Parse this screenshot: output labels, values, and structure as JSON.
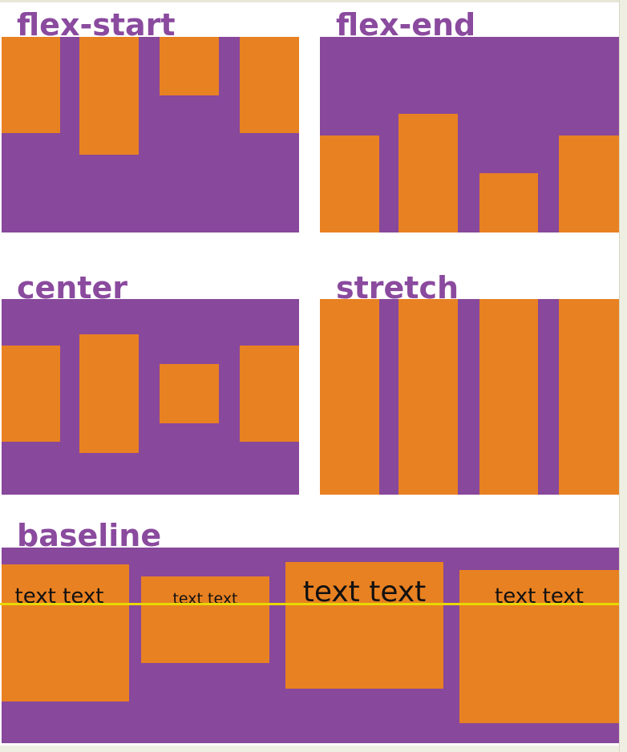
{
  "colors": {
    "container": "#88489b",
    "item": "#e88122",
    "label": "#8a4a9e",
    "baseline_guide": "#e8d800"
  },
  "demos": {
    "flex_start": {
      "label": "flex-start"
    },
    "flex_end": {
      "label": "flex-end"
    },
    "center": {
      "label": "center"
    },
    "stretch": {
      "label": "stretch"
    },
    "baseline": {
      "label": "baseline",
      "items": [
        "text text",
        "text text",
        "text text",
        "text text"
      ]
    }
  }
}
